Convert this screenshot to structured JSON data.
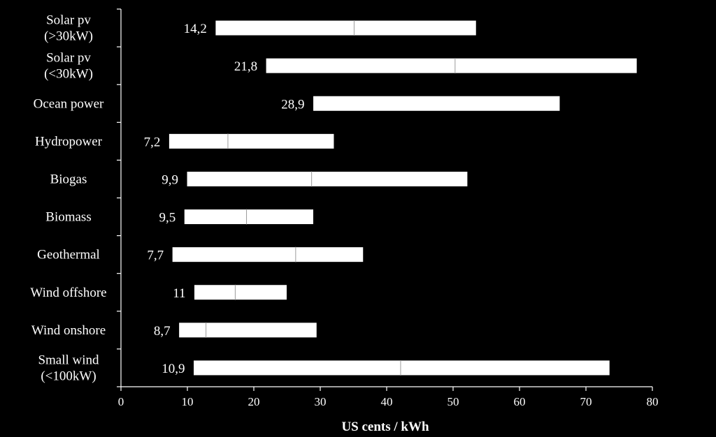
{
  "chart_data": {
    "type": "bar",
    "orientation": "horizontal",
    "style": "floating-range",
    "xlabel": "US cents / kWh",
    "ylabel": "",
    "title": "",
    "xlim": [
      0,
      80
    ],
    "xticks": [
      0,
      10,
      20,
      30,
      40,
      50,
      60,
      70,
      80
    ],
    "grid": false,
    "colors": {
      "background": "#000000",
      "bar_fill": "#ffffff",
      "bar_stroke": "#000000",
      "text": "#ffffff",
      "axis": "#ffffff"
    },
    "categories": [
      [
        "Solar pv",
        "(>30kW)"
      ],
      [
        "Solar pv",
        "(<30kW)"
      ],
      [
        "Ocean power"
      ],
      [
        "Hydropower"
      ],
      [
        "Biogas"
      ],
      [
        "Biomass"
      ],
      [
        "Geothermal"
      ],
      [
        "Wind offshore"
      ],
      [
        "Wind onshore"
      ],
      [
        "Small wind",
        "(<100kW)"
      ]
    ],
    "min_labels": [
      "14,2",
      "21,8",
      "28,9",
      "7,2",
      "9,9",
      "9,5",
      "7,7",
      "11",
      "8,7",
      "10,9"
    ],
    "min": [
      14.2,
      21.8,
      28.9,
      7.2,
      9.9,
      9.5,
      7.7,
      11,
      8.7,
      10.9
    ],
    "mid": [
      35.1,
      50.3,
      null,
      16.1,
      28.7,
      18.9,
      26.3,
      17.2,
      12.8,
      42.1
    ],
    "max": [
      53.5,
      77.7,
      66.1,
      32.1,
      52.2,
      29.0,
      36.5,
      25.0,
      29.5,
      73.6
    ]
  }
}
